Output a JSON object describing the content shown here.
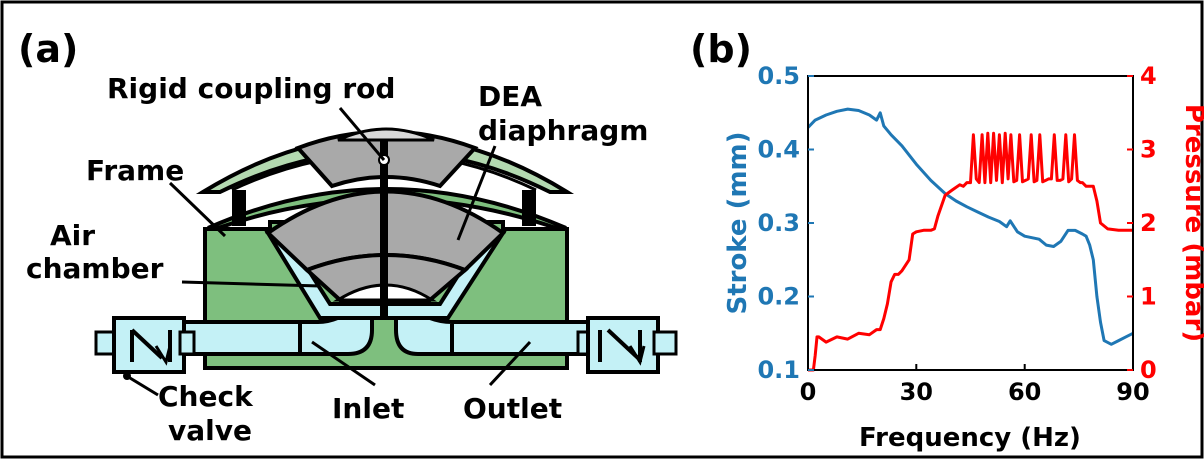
{
  "panel_a": {
    "panel_label": "(a)",
    "labels": {
      "rod": "Rigid coupling rod",
      "dea_1": "DEA",
      "dea_2": "diaphragm",
      "frame": "Frame",
      "air_1": "Air",
      "air_2": "chamber",
      "check_1": "Check",
      "check_2": "valve",
      "inlet": "Inlet",
      "outlet": "Outlet"
    },
    "colors": {
      "frame_green": "#7ebf7e",
      "lid_green": "#b3d9b0",
      "air_cyan": "#c4f1f6",
      "membrane_gray": "#a9a9a9"
    }
  },
  "panel_b": {
    "panel_label": "(b)"
  },
  "chart_data": {
    "type": "line",
    "xlabel": "Frequency (Hz)",
    "ylabel": "Stroke (mm)",
    "y2label": "Pressure (mbar)",
    "xlim": [
      0,
      90
    ],
    "ylim": [
      0.1,
      0.5
    ],
    "y2lim": [
      0,
      4
    ],
    "xticks": [
      "0",
      "30",
      "60",
      "90"
    ],
    "yticks": [
      "0.1",
      "0.2",
      "0.3",
      "0.4",
      "0.5"
    ],
    "y2ticks": [
      "0",
      "1",
      "2",
      "3",
      "4"
    ],
    "grid": false,
    "series": [
      {
        "axis": "left",
        "color": "#1f77b4",
        "x": [
          0,
          2,
          5,
          8,
          11,
          14,
          17,
          19,
          20,
          21,
          23,
          26,
          30,
          34,
          38,
          41,
          44,
          47,
          50,
          53,
          55,
          56,
          58,
          60,
          62,
          64,
          66,
          68,
          70,
          72,
          74,
          76,
          77,
          78,
          79,
          80,
          81,
          82,
          84,
          86,
          88,
          90
        ],
        "y": [
          0.43,
          0.44,
          0.447,
          0.452,
          0.455,
          0.453,
          0.447,
          0.44,
          0.45,
          0.432,
          0.42,
          0.405,
          0.38,
          0.358,
          0.34,
          0.33,
          0.322,
          0.315,
          0.308,
          0.302,
          0.295,
          0.303,
          0.288,
          0.282,
          0.28,
          0.278,
          0.27,
          0.268,
          0.275,
          0.29,
          0.29,
          0.285,
          0.282,
          0.27,
          0.25,
          0.2,
          0.165,
          0.14,
          0.135,
          0.14,
          0.145,
          0.15
        ]
      },
      {
        "axis": "right",
        "color": "#ff0000",
        "x": [
          0,
          1.5,
          2,
          2.5,
          3,
          5,
          8,
          11,
          14,
          17,
          19,
          20,
          21,
          22,
          23,
          24,
          25,
          26,
          28,
          29,
          30,
          32,
          34,
          35,
          36,
          38,
          40,
          42,
          43,
          44,
          45,
          45.8,
          46.6,
          47.4,
          48.2,
          49,
          49.8,
          50.6,
          51.4,
          52.2,
          53,
          53.8,
          54.6,
          55.4,
          56.2,
          57,
          57.8,
          58.6,
          59.4,
          60.2,
          61,
          61.8,
          62.6,
          63.4,
          64.2,
          65,
          65.8,
          66.6,
          67.4,
          68.2,
          69,
          69.8,
          70.6,
          71.4,
          72.2,
          73,
          73.8,
          74.6,
          75.4,
          76,
          77,
          78,
          79,
          80,
          81,
          83,
          86,
          88,
          90
        ],
        "y": [
          0,
          0,
          0.2,
          0.45,
          0.45,
          0.38,
          0.45,
          0.42,
          0.5,
          0.48,
          0.55,
          0.55,
          0.7,
          0.9,
          1.2,
          1.3,
          1.3,
          1.35,
          1.5,
          1.85,
          1.88,
          1.9,
          1.9,
          1.92,
          2.1,
          2.38,
          2.45,
          2.52,
          2.5,
          2.55,
          2.55,
          3.2,
          2.6,
          2.55,
          3.2,
          2.55,
          3.22,
          2.55,
          3.22,
          2.58,
          3.2,
          2.55,
          3.22,
          2.6,
          3.2,
          2.56,
          2.58,
          3.2,
          2.56,
          2.58,
          2.6,
          3.2,
          2.56,
          2.58,
          3.2,
          2.56,
          2.58,
          2.6,
          2.6,
          3.2,
          2.58,
          2.58,
          2.6,
          3.2,
          2.56,
          2.6,
          3.2,
          2.58,
          2.55,
          2.55,
          2.5,
          2.5,
          2.5,
          2.3,
          2.0,
          1.92,
          1.9,
          1.9,
          1.9
        ]
      }
    ]
  }
}
